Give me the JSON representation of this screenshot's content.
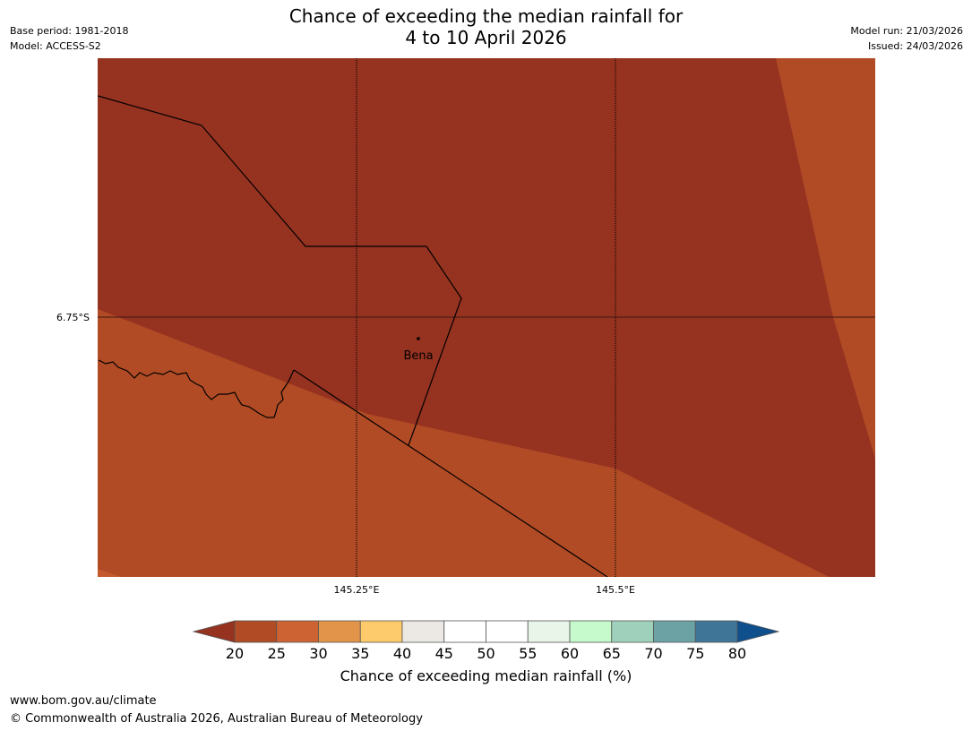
{
  "header": {
    "base_period": "Base period: 1981-2018",
    "model": "Model: ACCESS-S2",
    "title_line1": "Chance of exceeding the median rainfall for",
    "title_line2": "4 to 10 April 2026",
    "model_run": "Model run: 21/03/2026",
    "issued": "Issued: 24/03/2026"
  },
  "map": {
    "lat_label": "6.75°S",
    "lon_labels": [
      "145.25°E",
      "145.5°E"
    ],
    "place": {
      "name": "Bena"
    },
    "colors": {
      "band_20": "#963220",
      "band_25": "#b14b25",
      "coast": "#000000",
      "grid": "#000000"
    }
  },
  "colorbar": {
    "label": "Chance of exceeding median rainfall (%)",
    "ticks": [
      "20",
      "25",
      "30",
      "35",
      "40",
      "45",
      "50",
      "55",
      "60",
      "65",
      "70",
      "75",
      "80"
    ],
    "under_color": "#963220",
    "over_color": "#0f4f8c",
    "colors": [
      "#b14b25",
      "#cd6332",
      "#e2944a",
      "#fdcb6b",
      "#ece9e5",
      "#ffffff",
      "#ffffff",
      "#e9f5e9",
      "#c6f9cb",
      "#9ed0bb",
      "#6ca2a4",
      "#3f7698"
    ]
  },
  "footer": {
    "url": "www.bom.gov.au/climate",
    "copyright": "© Commonwealth of Australia 2026, Australian Bureau of Meteorology"
  }
}
